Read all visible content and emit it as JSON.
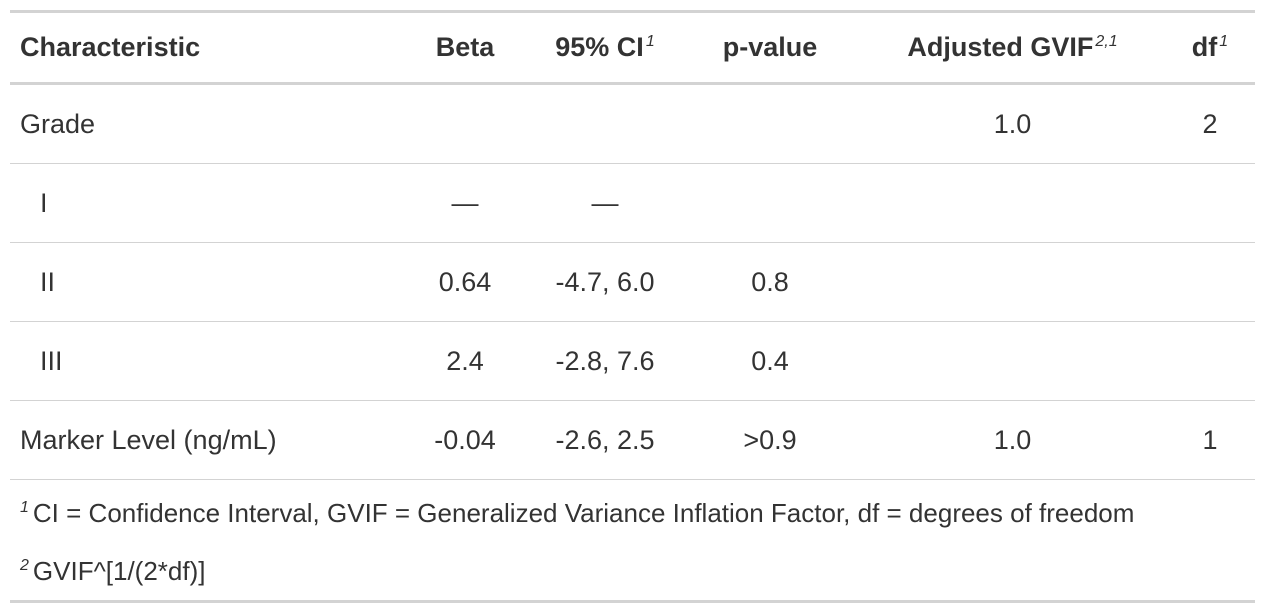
{
  "table": {
    "columns": [
      {
        "label": "Characteristic"
      },
      {
        "label": "Beta"
      },
      {
        "label": "95% CI",
        "footnote_marks": "1"
      },
      {
        "label": "p-value"
      },
      {
        "label": "Adjusted GVIF",
        "footnote_marks": "2,1"
      },
      {
        "label": "df",
        "footnote_marks": "1"
      }
    ],
    "rows": [
      {
        "cells": [
          "Grade",
          null,
          null,
          null,
          "1.0",
          "2"
        ]
      },
      {
        "cells": [
          "I",
          "—",
          "—",
          null,
          null,
          null
        ],
        "indent": true
      },
      {
        "cells": [
          "II",
          "0.64",
          "-4.7, 6.0",
          "0.8",
          null,
          null
        ],
        "indent": true
      },
      {
        "cells": [
          "III",
          "2.4",
          "-2.8, 7.6",
          "0.4",
          null,
          null
        ],
        "indent": true
      },
      {
        "cells": [
          "Marker Level (ng/mL)",
          "-0.04",
          "-2.6, 2.5",
          ">0.9",
          "1.0",
          "1"
        ]
      }
    ],
    "footnotes": [
      {
        "mark": "1",
        "text": "CI = Confidence Interval, GVIF = Generalized Variance Inflation Factor, df = degrees of freedom"
      },
      {
        "mark": "2",
        "text": "GVIF^[1/(2*df)]"
      }
    ]
  }
}
